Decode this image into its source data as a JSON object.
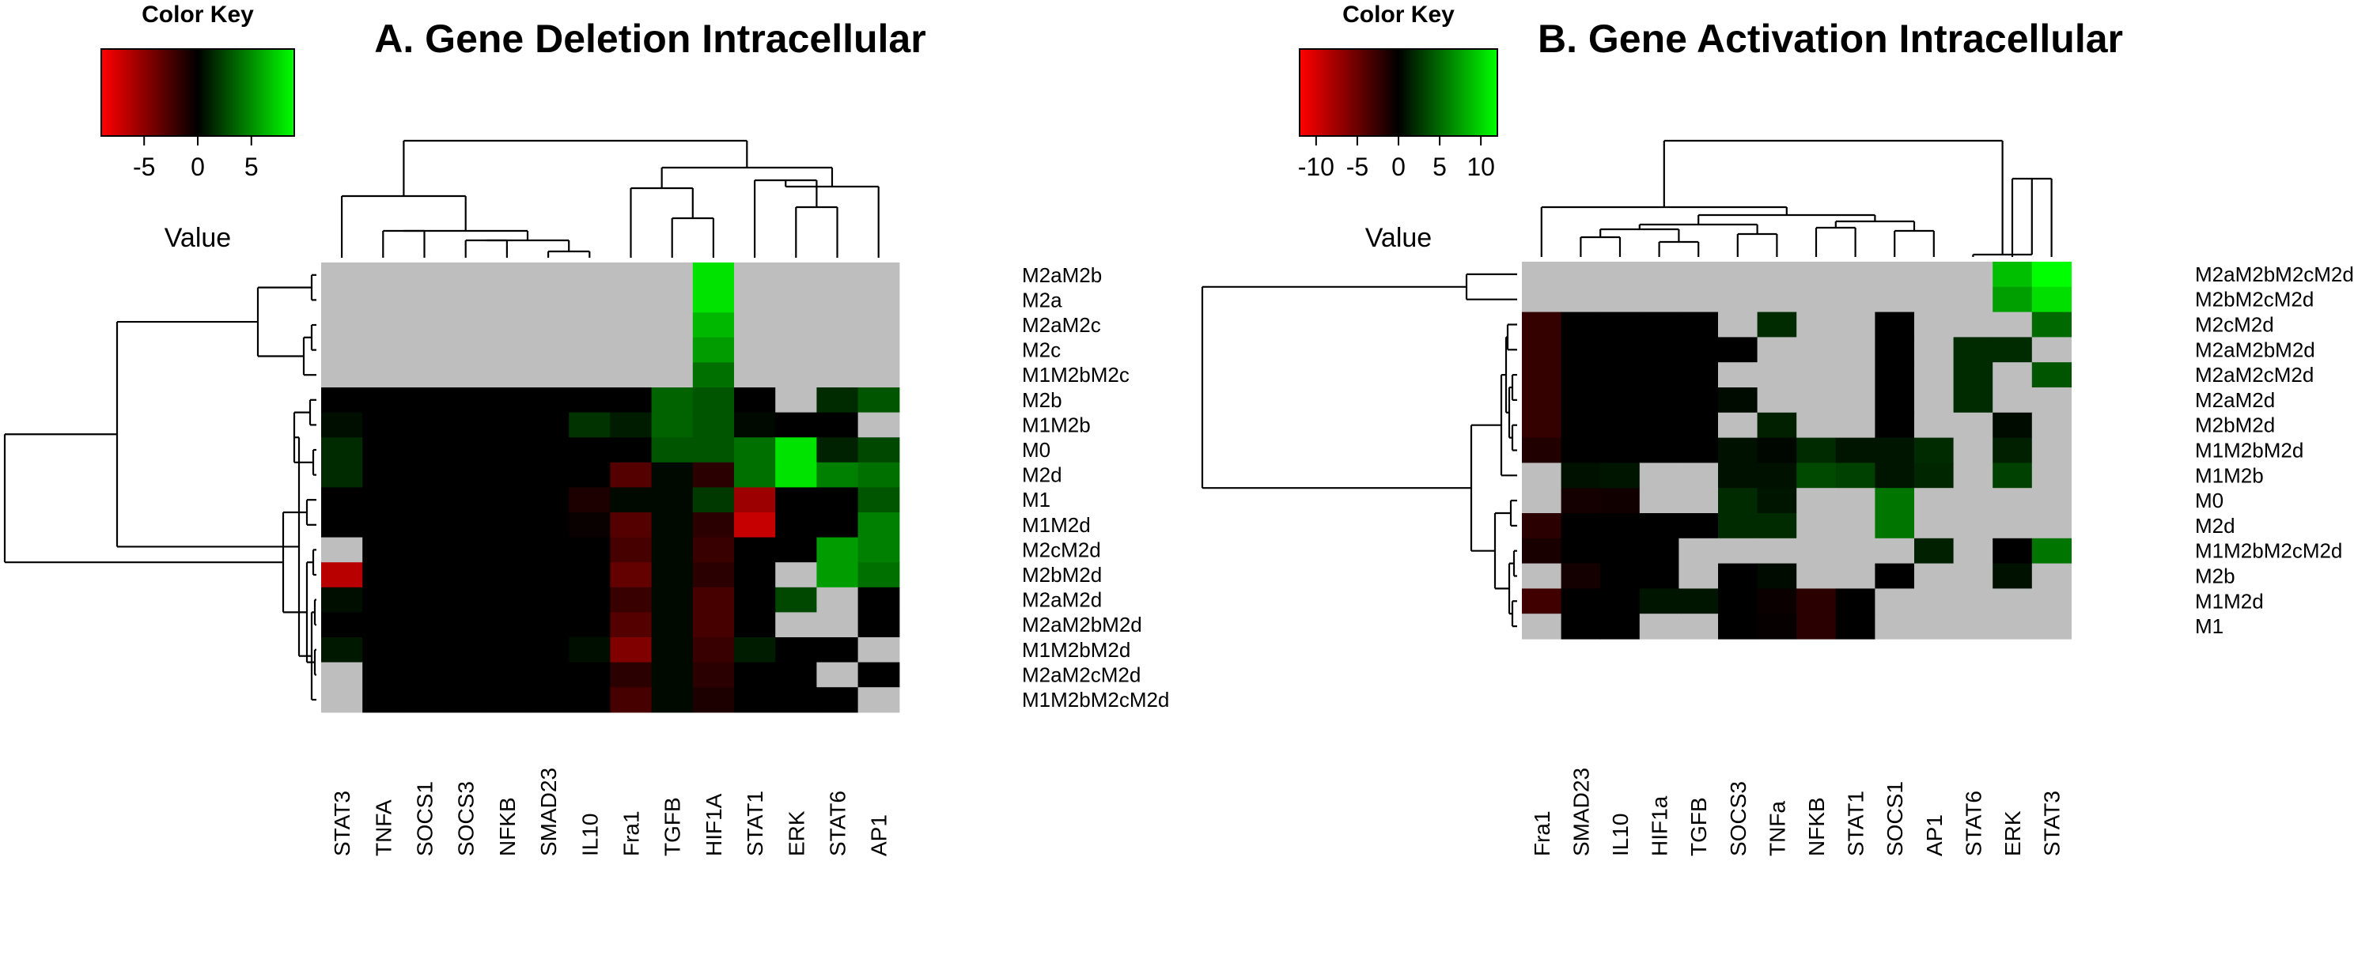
{
  "chart_data": [
    {
      "type": "heatmap",
      "title": "A. Gene Deletion Intracellular",
      "color_key": {
        "title": "Color Key",
        "xlabel": "Value",
        "range": [
          -9,
          9
        ],
        "ticks": [
          -5,
          0,
          5
        ],
        "tick_labels": [
          "-5",
          "0",
          "5"
        ],
        "low_color": "#ff0000",
        "mid_color": "#000000",
        "high_color": "#00ff00"
      },
      "na_color": "#bebebe",
      "columns": [
        "STAT3",
        "TNFA",
        "SOCS1",
        "SOCS3",
        "NFKB",
        "SMAD23",
        "IL10",
        "Fra1",
        "TGFB",
        "HIF1A",
        "STAT1",
        "ERK",
        "STAT6",
        "AP1"
      ],
      "rows": [
        "M2aM2b",
        "M2a",
        "M2aM2c",
        "M2c",
        "M1M2bM2c",
        "M2b",
        "M1M2b",
        "M0",
        "M2d",
        "M1",
        "M1M2d",
        "M2cM2d",
        "M2bM2d",
        "M2aM2d",
        "M2aM2bM2d",
        "M1M2bM2d",
        "M2aM2cM2d",
        "M1M2bM2cM2d"
      ],
      "values": [
        [
          null,
          null,
          null,
          null,
          null,
          null,
          null,
          null,
          null,
          8,
          null,
          null,
          null,
          null
        ],
        [
          null,
          null,
          null,
          null,
          null,
          null,
          null,
          null,
          null,
          8,
          null,
          null,
          null,
          null
        ],
        [
          null,
          null,
          null,
          null,
          null,
          null,
          null,
          null,
          null,
          6.5,
          null,
          null,
          null,
          null
        ],
        [
          null,
          null,
          null,
          null,
          null,
          null,
          null,
          null,
          null,
          5.5,
          null,
          null,
          null,
          null
        ],
        [
          null,
          null,
          null,
          null,
          null,
          null,
          null,
          null,
          null,
          4,
          null,
          null,
          null,
          null
        ],
        [
          0,
          0,
          0,
          0,
          0,
          0,
          0,
          0,
          3.5,
          3,
          0,
          null,
          1.5,
          3
        ],
        [
          0.5,
          0,
          0,
          0,
          0,
          0,
          1.8,
          1,
          3.5,
          3,
          0.3,
          0,
          0,
          null
        ],
        [
          1.5,
          0,
          0,
          0,
          0,
          0,
          0,
          0,
          3,
          3,
          4,
          8,
          1.2,
          2.5
        ],
        [
          1.5,
          0,
          0,
          0,
          0,
          0,
          0,
          -3,
          0.3,
          -1.5,
          4,
          8,
          4.5,
          4
        ],
        [
          0,
          0,
          0,
          0,
          0,
          0,
          -1,
          0.3,
          0.3,
          2,
          -5.5,
          0,
          0,
          3
        ],
        [
          0,
          0,
          0,
          0,
          0,
          0,
          -0.3,
          -3,
          0.3,
          -1.5,
          -7,
          0,
          0,
          4.5
        ],
        [
          null,
          0,
          0,
          0,
          0,
          0,
          0,
          -2.5,
          0.3,
          -2,
          0,
          0,
          5.5,
          4.5
        ],
        [
          -6.5,
          0,
          0,
          0,
          0,
          0,
          0,
          -3.5,
          0.3,
          -1.5,
          0,
          null,
          5.5,
          4
        ],
        [
          0.5,
          0,
          0,
          0,
          0,
          0,
          0,
          -2,
          0.3,
          -2.5,
          0,
          2.5,
          null,
          0
        ],
        [
          0,
          0,
          0,
          0,
          0,
          0,
          0,
          -3,
          0.3,
          -2.5,
          0,
          null,
          null,
          0
        ],
        [
          0.8,
          0,
          0,
          0,
          0,
          0,
          0.5,
          -4.5,
          0.3,
          -2,
          1,
          0,
          0,
          null
        ],
        [
          null,
          0,
          0,
          0,
          0,
          0,
          0,
          -1.5,
          0.3,
          -1.5,
          0,
          0,
          null,
          0
        ],
        [
          null,
          0,
          0,
          0,
          0,
          0,
          0,
          -2.5,
          0.3,
          -1,
          0,
          0,
          0,
          null
        ]
      ]
    },
    {
      "type": "heatmap",
      "title": "B. Gene Activation Intracellular",
      "color_key": {
        "title": "Color Key",
        "xlabel": "Value",
        "range": [
          -12,
          12
        ],
        "ticks": [
          -10,
          -5,
          0,
          5,
          10
        ],
        "tick_labels": [
          "-10",
          "-5",
          "0",
          "5",
          "10"
        ],
        "low_color": "#ff0000",
        "mid_color": "#000000",
        "high_color": "#00ff00"
      },
      "na_color": "#bebebe",
      "columns": [
        "Fra1",
        "SMAD23",
        "IL10",
        "HIF1a",
        "TGFB",
        "SOCS3",
        "TNFa",
        "NFKB",
        "STAT1",
        "SOCS1",
        "AP1",
        "STAT6",
        "ERK",
        "STAT3"
      ],
      "rows": [
        "M2aM2bM2cM2d",
        "M2bM2cM2d",
        "M2cM2d",
        "M2aM2bM2d",
        "M2aM2cM2d",
        "M2aM2d",
        "M2bM2d",
        "M1M2bM2d",
        "M1M2b",
        "M0",
        "M2d",
        "M1M2bM2cM2d",
        "M2b",
        "M1M2d",
        "M1"
      ],
      "values": [
        [
          null,
          null,
          null,
          null,
          null,
          null,
          null,
          null,
          null,
          null,
          null,
          null,
          9,
          12
        ],
        [
          null,
          null,
          null,
          null,
          null,
          null,
          null,
          null,
          null,
          null,
          null,
          null,
          7.5,
          10.5
        ],
        [
          -2.5,
          0,
          0,
          0,
          0,
          null,
          2,
          null,
          null,
          0,
          null,
          null,
          null,
          5
        ],
        [
          -2.5,
          0,
          0,
          0,
          0,
          0,
          null,
          null,
          null,
          0,
          null,
          2,
          2,
          null
        ],
        [
          -2.5,
          0,
          0,
          0,
          0,
          null,
          null,
          null,
          null,
          0,
          null,
          2,
          null,
          4
        ],
        [
          -2.5,
          0,
          0,
          0,
          0,
          0.5,
          null,
          null,
          null,
          0,
          null,
          2,
          null,
          null
        ],
        [
          -2.5,
          0,
          0,
          0,
          0,
          null,
          1.5,
          null,
          null,
          0,
          null,
          null,
          0.5,
          null
        ],
        [
          -1.5,
          0,
          0,
          0,
          0,
          0.8,
          0.3,
          2,
          1,
          1,
          2,
          null,
          1.5,
          null
        ],
        [
          null,
          0.8,
          1,
          null,
          null,
          0.8,
          0.8,
          3.5,
          3,
          1,
          1.8,
          null,
          3,
          null
        ],
        [
          null,
          -1,
          -0.8,
          null,
          null,
          2,
          1,
          null,
          null,
          5.5,
          null,
          null,
          null,
          null
        ],
        [
          -2,
          0,
          0,
          0,
          0,
          2,
          2,
          null,
          null,
          5.5,
          null,
          null,
          null,
          null
        ],
        [
          -1.2,
          0,
          0,
          0,
          null,
          null,
          null,
          null,
          null,
          null,
          1.5,
          null,
          0,
          5.5
        ],
        [
          null,
          -1,
          0,
          0,
          null,
          0,
          0.5,
          null,
          null,
          0,
          null,
          null,
          0.8,
          null
        ],
        [
          -3,
          0,
          0,
          1,
          1,
          0,
          -0.5,
          -2,
          0,
          null,
          null,
          null,
          null,
          null
        ],
        [
          null,
          0,
          0,
          null,
          null,
          0,
          -0.3,
          -2,
          0,
          null,
          null,
          null,
          null,
          null
        ]
      ]
    }
  ]
}
